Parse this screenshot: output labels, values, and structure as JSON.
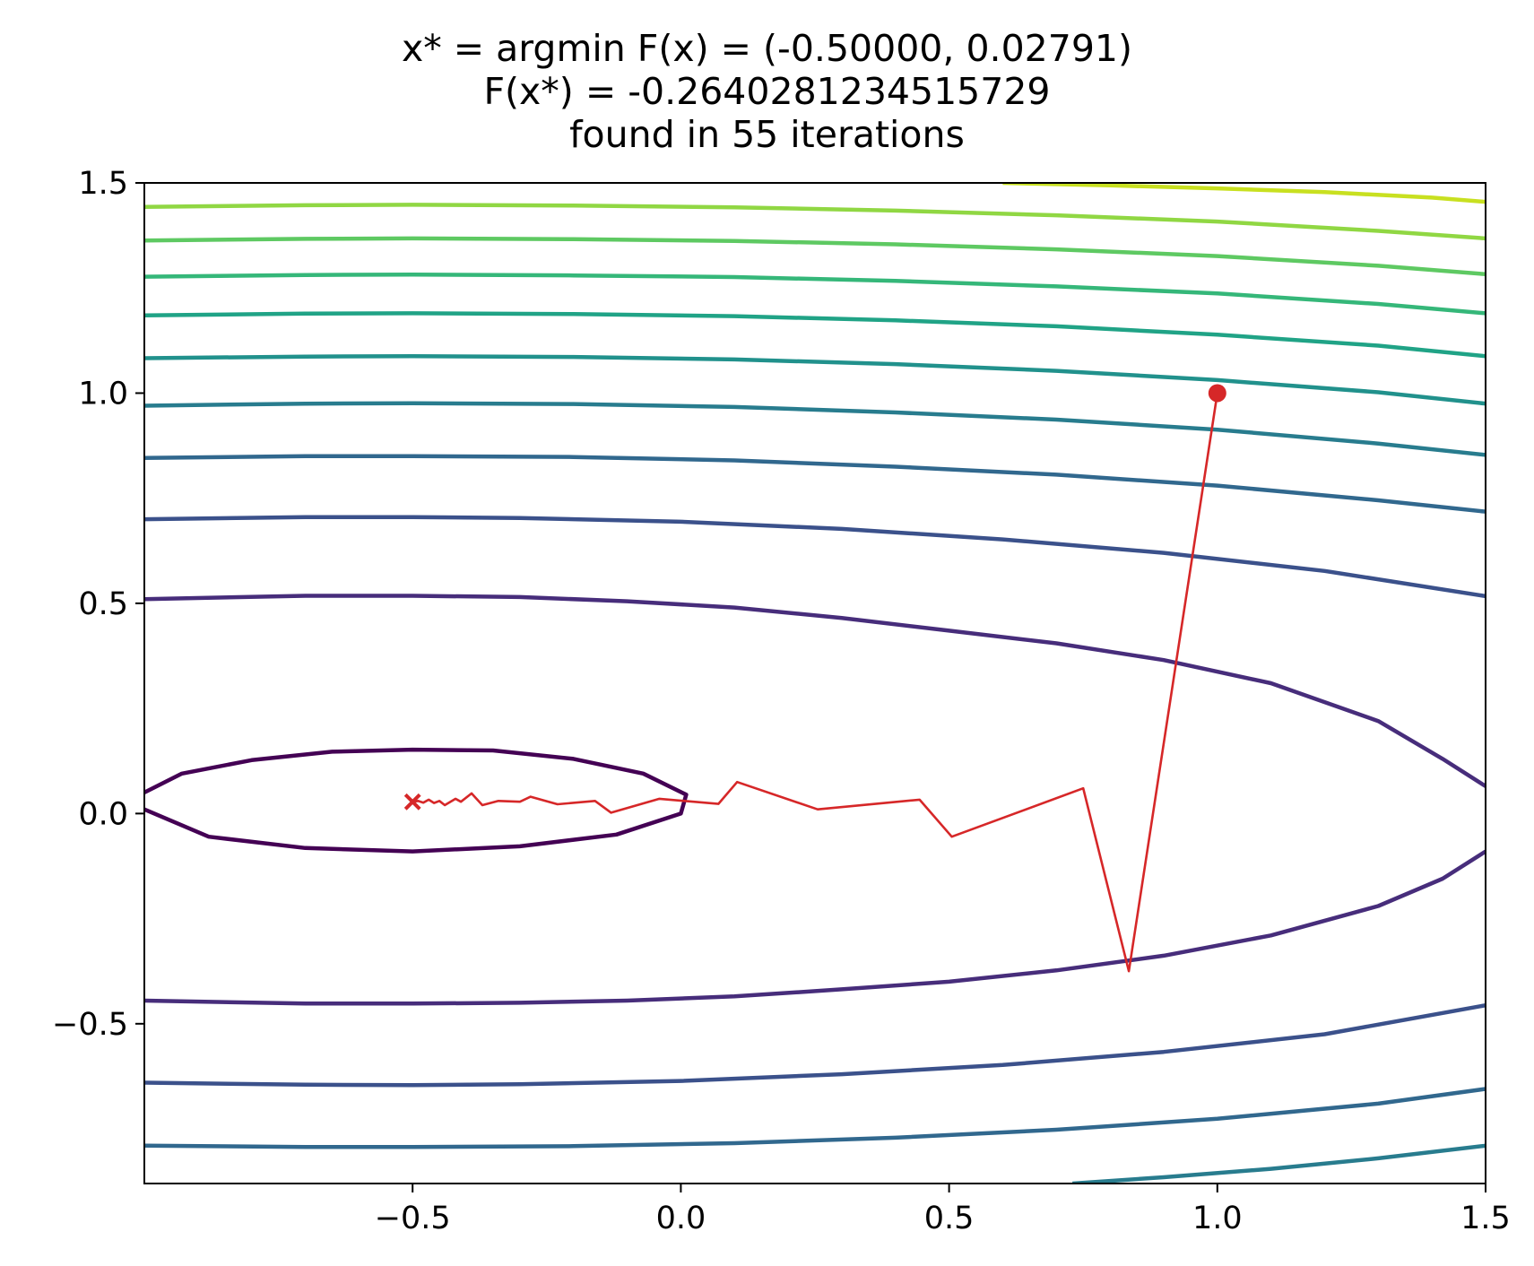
{
  "chart_data": {
    "type": "contour",
    "title_lines": [
      "x* = argmin F(x) = (-0.50000, 0.02791)",
      "F(x*) = -0.2640281234515729",
      "found in 55 iterations"
    ],
    "xlabel": "",
    "ylabel": "",
    "xlim": [
      -1.0,
      1.5
    ],
    "ylim": [
      -0.88,
      1.5
    ],
    "xticks": [
      {
        "value": -0.5,
        "label": "−0.5"
      },
      {
        "value": 0.0,
        "label": "0.0"
      },
      {
        "value": 0.5,
        "label": "0.5"
      },
      {
        "value": 1.0,
        "label": "1.0"
      },
      {
        "value": 1.5,
        "label": "1.5"
      }
    ],
    "yticks": [
      {
        "value": -0.5,
        "label": "−0.5"
      },
      {
        "value": 0.0,
        "label": "0.0"
      },
      {
        "value": 0.5,
        "label": "0.5"
      },
      {
        "value": 1.0,
        "label": "1.0"
      },
      {
        "value": 1.5,
        "label": "1.5"
      }
    ],
    "grid": false,
    "contours": [
      {
        "color": "#440154",
        "points": [
          [
            -1.0,
            0.05
          ],
          [
            -0.93,
            0.095
          ],
          [
            -0.8,
            0.127
          ],
          [
            -0.65,
            0.147
          ],
          [
            -0.5,
            0.152
          ],
          [
            -0.35,
            0.15
          ],
          [
            -0.2,
            0.13
          ],
          [
            -0.07,
            0.095
          ],
          [
            0.01,
            0.045
          ],
          [
            0.0,
            0.0
          ],
          [
            -0.12,
            -0.05
          ],
          [
            -0.3,
            -0.078
          ],
          [
            -0.5,
            -0.09
          ],
          [
            -0.7,
            -0.082
          ],
          [
            -0.88,
            -0.055
          ],
          [
            -1.0,
            0.01
          ]
        ]
      },
      {
        "color": "#472d7b",
        "points": [
          [
            -1.0,
            0.51
          ],
          [
            -0.7,
            0.518
          ],
          [
            -0.5,
            0.518
          ],
          [
            -0.3,
            0.515
          ],
          [
            -0.1,
            0.505
          ],
          [
            0.1,
            0.49
          ],
          [
            0.3,
            0.465
          ],
          [
            0.5,
            0.435
          ],
          [
            0.7,
            0.405
          ],
          [
            0.9,
            0.365
          ],
          [
            1.1,
            0.31
          ],
          [
            1.3,
            0.22
          ],
          [
            1.42,
            0.13
          ],
          [
            1.5,
            0.065
          ]
        ]
      },
      {
        "color": "#472d7b",
        "points": [
          [
            -1.0,
            -0.445
          ],
          [
            -0.7,
            -0.452
          ],
          [
            -0.5,
            -0.452
          ],
          [
            -0.3,
            -0.45
          ],
          [
            -0.1,
            -0.445
          ],
          [
            0.1,
            -0.435
          ],
          [
            0.3,
            -0.418
          ],
          [
            0.5,
            -0.4
          ],
          [
            0.7,
            -0.373
          ],
          [
            0.9,
            -0.338
          ],
          [
            1.1,
            -0.29
          ],
          [
            1.3,
            -0.22
          ],
          [
            1.42,
            -0.155
          ],
          [
            1.5,
            -0.09
          ]
        ]
      },
      {
        "color": "#3b518b",
        "points": [
          [
            -1.0,
            0.7
          ],
          [
            -0.7,
            0.705
          ],
          [
            -0.5,
            0.705
          ],
          [
            -0.3,
            0.703
          ],
          [
            0.0,
            0.694
          ],
          [
            0.3,
            0.677
          ],
          [
            0.6,
            0.652
          ],
          [
            0.9,
            0.62
          ],
          [
            1.2,
            0.577
          ],
          [
            1.5,
            0.517
          ]
        ]
      },
      {
        "color": "#3b518b",
        "points": [
          [
            -1.0,
            -0.64
          ],
          [
            -0.7,
            -0.645
          ],
          [
            -0.5,
            -0.646
          ],
          [
            -0.3,
            -0.644
          ],
          [
            0.0,
            -0.636
          ],
          [
            0.3,
            -0.62
          ],
          [
            0.6,
            -0.598
          ],
          [
            0.9,
            -0.567
          ],
          [
            1.2,
            -0.525
          ],
          [
            1.5,
            -0.456
          ]
        ]
      },
      {
        "color": "#31688e",
        "points": [
          [
            -1.0,
            0.846
          ],
          [
            -0.7,
            0.85
          ],
          [
            -0.5,
            0.85
          ],
          [
            -0.2,
            0.848
          ],
          [
            0.1,
            0.84
          ],
          [
            0.4,
            0.825
          ],
          [
            0.7,
            0.806
          ],
          [
            1.0,
            0.78
          ],
          [
            1.3,
            0.745
          ],
          [
            1.5,
            0.718
          ]
        ]
      },
      {
        "color": "#31688e",
        "points": [
          [
            -1.0,
            -0.79
          ],
          [
            -0.7,
            -0.793
          ],
          [
            -0.5,
            -0.793
          ],
          [
            -0.2,
            -0.791
          ],
          [
            0.1,
            -0.784
          ],
          [
            0.4,
            -0.771
          ],
          [
            0.7,
            -0.752
          ],
          [
            1.0,
            -0.726
          ],
          [
            1.3,
            -0.69
          ],
          [
            1.5,
            -0.655
          ]
        ]
      },
      {
        "color": "#287c8e",
        "points": [
          [
            -1.0,
            0.97
          ],
          [
            -0.7,
            0.975
          ],
          [
            -0.5,
            0.976
          ],
          [
            -0.2,
            0.974
          ],
          [
            0.1,
            0.967
          ],
          [
            0.4,
            0.954
          ],
          [
            0.7,
            0.937
          ],
          [
            1.0,
            0.913
          ],
          [
            1.3,
            0.88
          ],
          [
            1.5,
            0.853
          ]
        ]
      },
      {
        "color": "#287c8e",
        "points": [
          [
            0.73,
            -0.88
          ],
          [
            0.9,
            -0.865
          ],
          [
            1.1,
            -0.845
          ],
          [
            1.3,
            -0.82
          ],
          [
            1.5,
            -0.79
          ]
        ]
      },
      {
        "color": "#21918c",
        "points": [
          [
            -1.0,
            1.083
          ],
          [
            -0.7,
            1.087
          ],
          [
            -0.5,
            1.088
          ],
          [
            -0.2,
            1.086
          ],
          [
            0.1,
            1.08
          ],
          [
            0.4,
            1.069
          ],
          [
            0.7,
            1.053
          ],
          [
            1.0,
            1.031
          ],
          [
            1.3,
            1.002
          ],
          [
            1.5,
            0.975
          ]
        ]
      },
      {
        "color": "#20a386",
        "points": [
          [
            -1.0,
            1.185
          ],
          [
            -0.7,
            1.189
          ],
          [
            -0.5,
            1.19
          ],
          [
            -0.2,
            1.188
          ],
          [
            0.1,
            1.183
          ],
          [
            0.4,
            1.173
          ],
          [
            0.7,
            1.159
          ],
          [
            1.0,
            1.139
          ],
          [
            1.3,
            1.113
          ],
          [
            1.5,
            1.088
          ]
        ]
      },
      {
        "color": "#35b779",
        "points": [
          [
            -1.0,
            1.277
          ],
          [
            -0.7,
            1.281
          ],
          [
            -0.5,
            1.282
          ],
          [
            -0.2,
            1.28
          ],
          [
            0.1,
            1.276
          ],
          [
            0.4,
            1.267
          ],
          [
            0.7,
            1.254
          ],
          [
            1.0,
            1.237
          ],
          [
            1.3,
            1.212
          ],
          [
            1.5,
            1.19
          ]
        ]
      },
      {
        "color": "#5ec962",
        "points": [
          [
            -1.0,
            1.363
          ],
          [
            -0.7,
            1.367
          ],
          [
            -0.5,
            1.368
          ],
          [
            -0.2,
            1.366
          ],
          [
            0.1,
            1.362
          ],
          [
            0.4,
            1.354
          ],
          [
            0.7,
            1.342
          ],
          [
            1.0,
            1.326
          ],
          [
            1.3,
            1.303
          ],
          [
            1.5,
            1.283
          ]
        ]
      },
      {
        "color": "#90d743",
        "points": [
          [
            -1.0,
            1.443
          ],
          [
            -0.7,
            1.447
          ],
          [
            -0.5,
            1.448
          ],
          [
            -0.2,
            1.446
          ],
          [
            0.1,
            1.442
          ],
          [
            0.4,
            1.434
          ],
          [
            0.7,
            1.423
          ],
          [
            1.0,
            1.408
          ],
          [
            1.3,
            1.386
          ],
          [
            1.5,
            1.368
          ]
        ]
      },
      {
        "color": "#c8e020",
        "points": [
          [
            0.6,
            1.5
          ],
          [
            0.8,
            1.494
          ],
          [
            1.0,
            1.487
          ],
          [
            1.2,
            1.478
          ],
          [
            1.4,
            1.465
          ],
          [
            1.5,
            1.455
          ]
        ]
      }
    ],
    "path": {
      "color": "#d62728",
      "start": [
        1.0,
        1.0
      ],
      "end": [
        -0.5,
        0.02791
      ],
      "points": [
        [
          1.0,
          1.0
        ],
        [
          0.835,
          -0.375
        ],
        [
          0.75,
          0.06
        ],
        [
          0.505,
          -0.055
        ],
        [
          0.445,
          0.033
        ],
        [
          0.255,
          0.01
        ],
        [
          0.105,
          0.075
        ],
        [
          0.07,
          0.023
        ],
        [
          -0.04,
          0.035
        ],
        [
          -0.13,
          0.002
        ],
        [
          -0.16,
          0.03
        ],
        [
          -0.23,
          0.022
        ],
        [
          -0.28,
          0.04
        ],
        [
          -0.3,
          0.028
        ],
        [
          -0.34,
          0.03
        ],
        [
          -0.37,
          0.02
        ],
        [
          -0.39,
          0.048
        ],
        [
          -0.41,
          0.028
        ],
        [
          -0.42,
          0.035
        ],
        [
          -0.44,
          0.02
        ],
        [
          -0.45,
          0.03
        ],
        [
          -0.46,
          0.025
        ],
        [
          -0.47,
          0.033
        ],
        [
          -0.48,
          0.026
        ],
        [
          -0.49,
          0.03
        ],
        [
          -0.5,
          0.02791
        ]
      ]
    }
  }
}
